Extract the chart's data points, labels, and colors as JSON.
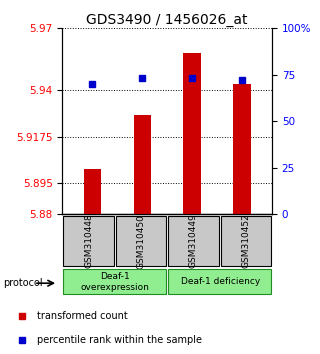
{
  "title": "GDS3490 / 1456026_at",
  "samples": [
    "GSM310448",
    "GSM310450",
    "GSM310449",
    "GSM310452"
  ],
  "red_values": [
    5.902,
    5.928,
    5.958,
    5.943
  ],
  "blue_values": [
    5.943,
    5.946,
    5.946,
    5.945
  ],
  "ylim_left": [
    5.88,
    5.97
  ],
  "ylim_right": [
    0,
    100
  ],
  "yticks_left": [
    5.88,
    5.895,
    5.9175,
    5.94,
    5.97
  ],
  "ytick_labels_left": [
    "5.88",
    "5.895",
    "5.9175",
    "5.94",
    "5.97"
  ],
  "yticks_right": [
    0,
    25,
    50,
    75,
    100
  ],
  "ytick_labels_right": [
    "0",
    "25",
    "50",
    "75",
    "100%"
  ],
  "hlines": [
    5.895,
    5.9175,
    5.94
  ],
  "protocol_label": "protocol",
  "legend_red": "transformed count",
  "legend_blue": "percentile rank within the sample",
  "bar_color": "#CC0000",
  "dot_color": "#0000CC",
  "bar_width": 0.35,
  "title_fontsize": 10,
  "tick_fontsize": 7.5
}
